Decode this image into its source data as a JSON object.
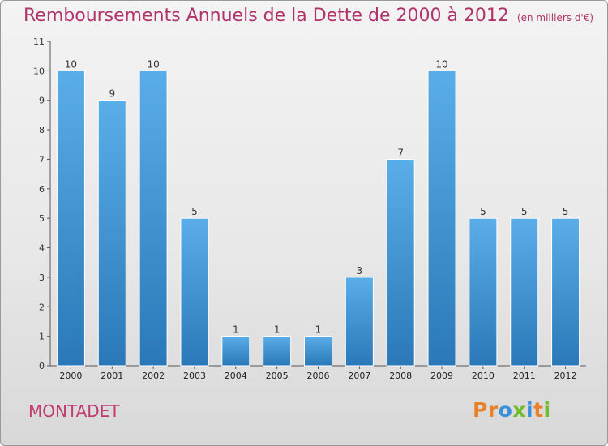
{
  "page": {
    "title": "Remboursements Annuels de la Dette de 2000 à 2012",
    "subtitle": "(en milliers d'€)",
    "commune": "MONTADET",
    "logo_text": "Proxiti"
  },
  "colors": {
    "title": "#b0336b",
    "bar_top": "#5aaee8",
    "bar_bottom": "#2a78b8",
    "logo_letters": [
      "#e8812a",
      "#e8812a",
      "#3a8fd8",
      "#6cbf2a",
      "#3a8fd8",
      "#e8812a",
      "#6cbf2a"
    ]
  },
  "chart_data": {
    "type": "bar",
    "title": "Remboursements Annuels de la Dette de 2000 à 2012",
    "subtitle": "(en milliers d'€)",
    "categories": [
      "2000",
      "2001",
      "2002",
      "2003",
      "2004",
      "2005",
      "2006",
      "2007",
      "2008",
      "2009",
      "2010",
      "2011",
      "2012"
    ],
    "values": [
      10,
      9,
      10,
      5,
      1,
      1,
      1,
      3,
      7,
      10,
      5,
      5,
      5
    ],
    "yticks": [
      0,
      1,
      2,
      3,
      4,
      5,
      6,
      7,
      8,
      9,
      10,
      11
    ],
    "ylim": [
      0,
      11
    ],
    "grid": false,
    "data_labels": true
  }
}
